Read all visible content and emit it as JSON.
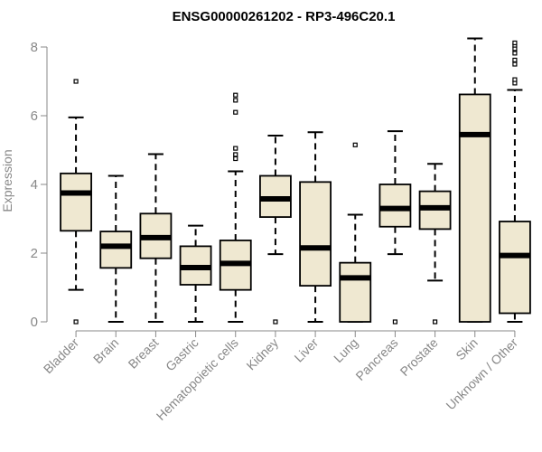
{
  "chart_data": {
    "type": "box",
    "title": "ENSG00000261202 - RP3-496C20.1",
    "xlabel": "",
    "ylabel": "Expression",
    "ylim": [
      0,
      8.3
    ],
    "yticks": [
      0,
      2,
      4,
      6,
      8
    ],
    "colors": {
      "box_fill": "#efe8d1",
      "stroke": "#000000",
      "axis_text": "#888888"
    },
    "categories": [
      "Bladder",
      "Brain",
      "Breast",
      "Gastric",
      "Hematopoietic cells",
      "Kidney",
      "Liver",
      "Lung",
      "Pancreas",
      "Prostate",
      "Skin",
      "Unknown / Other"
    ],
    "boxes": [
      {
        "category": "Bladder",
        "whisker_low": 0.93,
        "q1": 2.65,
        "median": 3.75,
        "q3": 4.32,
        "whisker_high": 5.95,
        "outliers": [
          7.0,
          0.0
        ]
      },
      {
        "category": "Brain",
        "whisker_low": 0.0,
        "q1": 1.57,
        "median": 2.2,
        "q3": 2.63,
        "whisker_high": 4.25,
        "outliers": []
      },
      {
        "category": "Breast",
        "whisker_low": 0.0,
        "q1": 1.85,
        "median": 2.45,
        "q3": 3.15,
        "whisker_high": 4.88,
        "outliers": []
      },
      {
        "category": "Gastric",
        "whisker_low": 0.0,
        "q1": 1.08,
        "median": 1.58,
        "q3": 2.2,
        "whisker_high": 2.8,
        "outliers": []
      },
      {
        "category": "Hematopoietic cells",
        "whisker_low": 0.0,
        "q1": 0.93,
        "median": 1.7,
        "q3": 2.37,
        "whisker_high": 4.38,
        "outliers": [
          4.75,
          4.87,
          5.05,
          6.1,
          6.45,
          6.6
        ]
      },
      {
        "category": "Kidney",
        "whisker_low": 1.97,
        "q1": 3.05,
        "median": 3.58,
        "q3": 4.25,
        "whisker_high": 5.42,
        "outliers": [
          0.0
        ]
      },
      {
        "category": "Liver",
        "whisker_low": 0.0,
        "q1": 1.05,
        "median": 2.15,
        "q3": 4.07,
        "whisker_high": 5.52,
        "outliers": []
      },
      {
        "category": "Lung",
        "whisker_low": 0.0,
        "q1": 0.0,
        "median": 1.28,
        "q3": 1.72,
        "whisker_high": 3.12,
        "outliers": [
          5.15
        ]
      },
      {
        "category": "Pancreas",
        "whisker_low": 1.97,
        "q1": 2.77,
        "median": 3.3,
        "q3": 4.0,
        "whisker_high": 5.55,
        "outliers": [
          0.0
        ]
      },
      {
        "category": "Prostate",
        "whisker_low": 1.2,
        "q1": 2.7,
        "median": 3.32,
        "q3": 3.8,
        "whisker_high": 4.6,
        "outliers": [
          0.0
        ]
      },
      {
        "category": "Skin",
        "whisker_low": 0.0,
        "q1": 0.0,
        "median": 5.45,
        "q3": 6.62,
        "whisker_high": 8.25,
        "outliers": []
      },
      {
        "category": "Unknown / Other",
        "whisker_low": 0.0,
        "q1": 0.25,
        "median": 1.93,
        "q3": 2.92,
        "whisker_high": 6.75,
        "outliers": [
          6.95,
          7.05,
          7.5,
          7.62,
          7.82,
          7.95,
          8.05,
          8.12
        ]
      }
    ]
  }
}
